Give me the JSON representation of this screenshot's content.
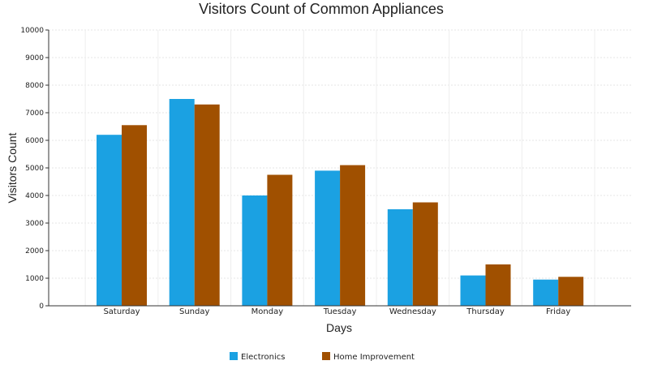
{
  "chart_data": {
    "type": "bar",
    "title": "Visitors Count of Common Appliances",
    "xlabel": "Days",
    "ylabel": "Visitors Count",
    "categories": [
      "Saturday",
      "Sunday",
      "Monday",
      "Tuesday",
      "Wednesday",
      "Thursday",
      "Friday"
    ],
    "series": [
      {
        "name": "Electronics",
        "color": "#1ba1e2",
        "values": [
          6200,
          7500,
          4000,
          4900,
          3500,
          1100,
          950
        ]
      },
      {
        "name": "Home Improvement",
        "color": "#a05000",
        "values": [
          6550,
          7300,
          4750,
          5100,
          3750,
          1500,
          1050
        ]
      }
    ],
    "ylim": [
      0,
      10000
    ],
    "yticks": [
      "0",
      "1000",
      "2000",
      "3000",
      "4000",
      "5000",
      "6000",
      "7000",
      "8000",
      "9000",
      "10000"
    ],
    "grid": true,
    "legend_position": "bottom-center"
  }
}
